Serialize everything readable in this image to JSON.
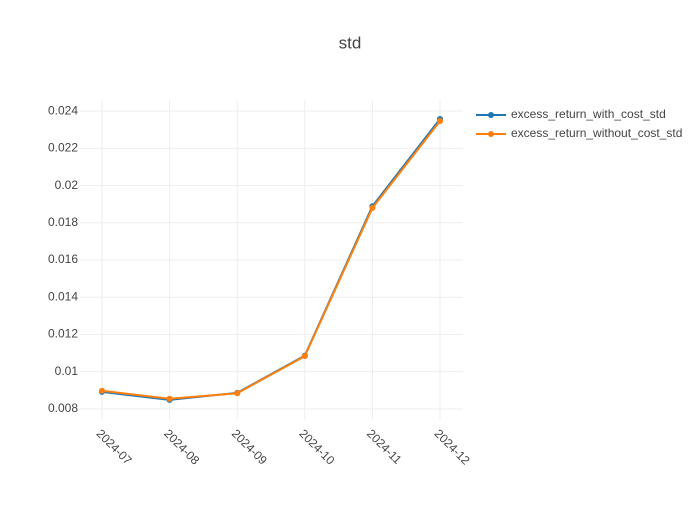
{
  "chart_data": {
    "type": "line",
    "title": "std",
    "categories": [
      "2024-07",
      "2024-08",
      "2024-09",
      "2024-10",
      "2024-11",
      "2024-12"
    ],
    "series": [
      {
        "name": "excess_return_with_cost_std",
        "color": "#1f77b4",
        "values": [
          0.00891,
          0.00848,
          0.00886,
          0.01086,
          0.01889,
          0.02358
        ]
      },
      {
        "name": "excess_return_without_cost_std",
        "color": "#ff7f0e",
        "values": [
          0.00897,
          0.00854,
          0.00884,
          0.01083,
          0.0188,
          0.02347
        ]
      }
    ],
    "ylim": [
      0.0074,
      0.0246
    ],
    "yticks": [
      0.008,
      0.01,
      0.012,
      0.014,
      0.016,
      0.018,
      0.02,
      0.022,
      0.024
    ],
    "grid": true
  }
}
